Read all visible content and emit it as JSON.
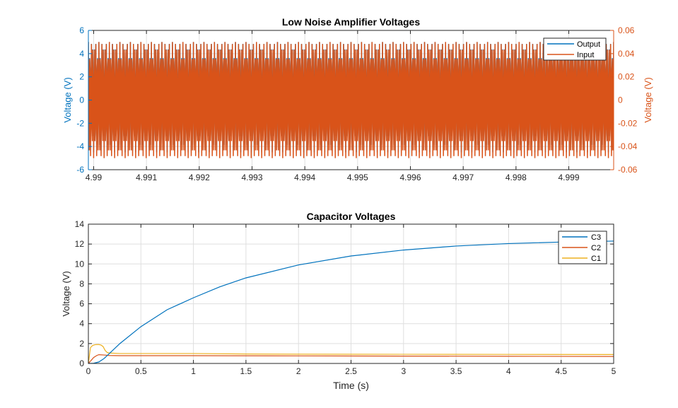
{
  "colors": {
    "blue": "#0072BD",
    "orange": "#D95319",
    "yellow": "#EDB120",
    "axis": "#262626",
    "grid": "#dfdfdf"
  },
  "chart_data": [
    {
      "type": "line",
      "title": "Low Noise Amplifier Voltages",
      "xlabel": "",
      "ylabel_left": "Voltage (V)",
      "ylabel_right": "Voltage (V)",
      "xlim": [
        4.9899,
        4.99985
      ],
      "ylim_left": [
        -6,
        6
      ],
      "ylim_right": [
        -0.06,
        0.06
      ],
      "x_ticks": [
        4.99,
        4.991,
        4.992,
        4.993,
        4.994,
        4.995,
        4.996,
        4.997,
        4.998,
        4.999
      ],
      "x_tick_labels": [
        "4.99",
        "4.991",
        "4.992",
        "4.993",
        "4.994",
        "4.995",
        "4.996",
        "4.997",
        "4.998",
        "4.999"
      ],
      "y_ticks_left": [
        -6,
        -4,
        -2,
        0,
        2,
        4,
        6
      ],
      "y_tick_labels_left": [
        "-6",
        "-4",
        "-2",
        "0",
        "2",
        "4",
        "6"
      ],
      "y_ticks_right": [
        -0.06,
        -0.04,
        -0.02,
        0,
        0.02,
        0.04,
        0.06
      ],
      "y_tick_labels_right": [
        "-0.06",
        "-0.04",
        "-0.02",
        "0",
        "0.02",
        "0.04",
        "0.06"
      ],
      "grid": true,
      "legend_position": "top-right",
      "series": [
        {
          "name": "Output",
          "axis": "left",
          "color": "#0072BD",
          "waveform": "sine",
          "frequency_hz": 1000000,
          "max": 5.0,
          "min": -4.5,
          "peak_times": [
            4.99025,
            4.99125,
            4.99225,
            4.99325,
            4.99425,
            4.99525,
            4.99625,
            4.99725,
            4.99825,
            4.99925
          ]
        },
        {
          "name": "Input",
          "axis": "right",
          "color": "#D95319",
          "waveform": "sine",
          "frequency_hz": 1000000,
          "max": 0.05,
          "min": -0.05,
          "peak_times": [
            4.99025,
            4.99125,
            4.99225,
            4.99325,
            4.99425,
            4.99525,
            4.99625,
            4.99725,
            4.99825,
            4.99925
          ]
        }
      ]
    },
    {
      "type": "line",
      "title": "Capacitor Voltages",
      "xlabel": "Time (s)",
      "ylabel": "Voltage (V)",
      "xlim": [
        0,
        5
      ],
      "ylim": [
        0,
        14
      ],
      "x_ticks": [
        0,
        0.5,
        1,
        1.5,
        2,
        2.5,
        3,
        3.5,
        4,
        4.5,
        5
      ],
      "x_tick_labels": [
        "0",
        "0.5",
        "1",
        "1.5",
        "2",
        "2.5",
        "3",
        "3.5",
        "4",
        "4.5",
        "5"
      ],
      "y_ticks": [
        0,
        2,
        4,
        6,
        8,
        10,
        12,
        14
      ],
      "y_tick_labels": [
        "0",
        "2",
        "4",
        "6",
        "8",
        "10",
        "12",
        "14"
      ],
      "grid": true,
      "legend_position": "top-right",
      "series": [
        {
          "name": "C3",
          "color": "#0072BD",
          "x": [
            0,
            0.05,
            0.1,
            0.15,
            0.2,
            0.3,
            0.5,
            0.75,
            1.0,
            1.25,
            1.5,
            2.0,
            2.5,
            3.0,
            3.5,
            4.0,
            4.5,
            5.0
          ],
          "y": [
            0,
            0.02,
            0.15,
            0.5,
            1.0,
            2.0,
            3.7,
            5.4,
            6.6,
            7.7,
            8.6,
            9.9,
            10.8,
            11.4,
            11.8,
            12.05,
            12.2,
            12.3
          ]
        },
        {
          "name": "C2",
          "color": "#D95319",
          "x": [
            0,
            0.03,
            0.05,
            0.08,
            0.1,
            0.15,
            0.2,
            0.3,
            0.5,
            1.0,
            2.0,
            3.0,
            4.0,
            5.0
          ],
          "y": [
            0,
            0.35,
            0.6,
            0.8,
            0.88,
            0.85,
            0.8,
            0.78,
            0.78,
            0.78,
            0.76,
            0.74,
            0.72,
            0.7
          ]
        },
        {
          "name": "C1",
          "color": "#EDB120",
          "x": [
            0,
            0.02,
            0.04,
            0.06,
            0.08,
            0.1,
            0.12,
            0.14,
            0.16,
            0.18,
            0.2,
            0.3,
            0.5,
            1.0,
            1.5,
            2.0,
            3.0,
            4.0,
            5.0
          ],
          "y": [
            0,
            1.6,
            1.8,
            1.88,
            1.9,
            1.9,
            1.85,
            1.7,
            1.3,
            1.1,
            1.05,
            1.0,
            1.0,
            1.0,
            0.95,
            0.93,
            0.92,
            0.91,
            0.9
          ]
        }
      ]
    }
  ]
}
